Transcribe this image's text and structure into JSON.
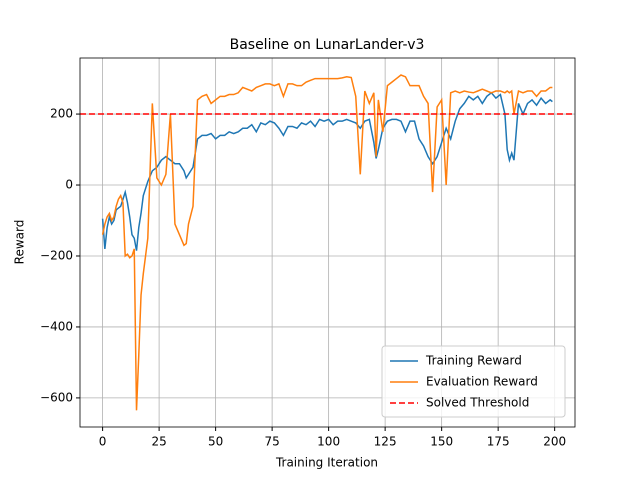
{
  "chart_data": {
    "type": "line",
    "title": "Baseline on LunarLander-v3",
    "x_label": "Training Iteration",
    "y_label": "Reward",
    "x": [
      0,
      1,
      2,
      3,
      4,
      5,
      6,
      7,
      8,
      9,
      10,
      11,
      12,
      13,
      14,
      15,
      16,
      17,
      18,
      19,
      20,
      22,
      24,
      26,
      28,
      30,
      32,
      34,
      36,
      37,
      38,
      40,
      42,
      44,
      46,
      48,
      50,
      52,
      54,
      56,
      58,
      60,
      62,
      64,
      66,
      68,
      70,
      72,
      74,
      76,
      78,
      80,
      82,
      84,
      86,
      88,
      90,
      92,
      94,
      96,
      98,
      100,
      102,
      104,
      106,
      108,
      110,
      112,
      114,
      116,
      118,
      120,
      121,
      122,
      124,
      126,
      128,
      130,
      132,
      134,
      136,
      138,
      140,
      142,
      144,
      146,
      148,
      150,
      152,
      154,
      156,
      158,
      160,
      162,
      164,
      166,
      168,
      170,
      172,
      174,
      176,
      178,
      179,
      180,
      181,
      182,
      184,
      186,
      188,
      190,
      192,
      194,
      196,
      198,
      199
    ],
    "series": [
      {
        "name": "Training Reward",
        "color": "#1f77b4",
        "values": [
          -95,
          -180,
          -120,
          -90,
          -110,
          -100,
          -70,
          -65,
          -60,
          -40,
          -20,
          -50,
          -90,
          -140,
          -150,
          -185,
          -120,
          -80,
          -30,
          -10,
          10,
          40,
          50,
          70,
          80,
          70,
          60,
          60,
          40,
          20,
          30,
          50,
          130,
          140,
          140,
          145,
          130,
          140,
          140,
          150,
          145,
          150,
          160,
          160,
          170,
          150,
          175,
          170,
          180,
          175,
          160,
          140,
          165,
          165,
          160,
          175,
          170,
          180,
          165,
          185,
          180,
          185,
          170,
          180,
          180,
          185,
          180,
          175,
          160,
          180,
          185,
          120,
          75,
          100,
          160,
          180,
          185,
          185,
          180,
          150,
          180,
          180,
          130,
          110,
          80,
          60,
          80,
          120,
          160,
          130,
          180,
          215,
          230,
          250,
          240,
          250,
          230,
          250,
          260,
          245,
          255,
          200,
          100,
          70,
          90,
          70,
          230,
          200,
          230,
          240,
          225,
          245,
          230,
          240,
          235
        ]
      },
      {
        "name": "Evaluation Reward",
        "color": "#ff7f0e",
        "values": [
          -140,
          -110,
          -90,
          -80,
          -100,
          -90,
          -60,
          -40,
          -30,
          -50,
          -200,
          -195,
          -205,
          -200,
          -180,
          -635,
          -480,
          -310,
          -250,
          -200,
          -150,
          230,
          20,
          0,
          30,
          200,
          -110,
          -140,
          -170,
          -165,
          -110,
          -60,
          240,
          250,
          255,
          230,
          240,
          250,
          250,
          255,
          255,
          260,
          275,
          270,
          265,
          275,
          280,
          285,
          285,
          280,
          285,
          250,
          285,
          285,
          280,
          280,
          290,
          295,
          300,
          300,
          300,
          300,
          300,
          300,
          302,
          305,
          303,
          250,
          30,
          265,
          230,
          260,
          80,
          240,
          150,
          280,
          290,
          300,
          310,
          305,
          280,
          280,
          280,
          250,
          230,
          -20,
          220,
          240,
          0,
          260,
          265,
          260,
          265,
          262,
          260,
          265,
          270,
          265,
          260,
          265,
          265,
          260,
          265,
          260,
          265,
          200,
          265,
          260,
          265,
          265,
          250,
          265,
          265,
          275,
          275
        ]
      }
    ],
    "hlines": [
      {
        "name": "Solved Threshold",
        "color": "#ff0000",
        "y": 200,
        "dashed": true
      }
    ],
    "xlim": [
      -10,
      209
    ],
    "ylim": [
      -682,
      358
    ],
    "xticks": [
      0,
      25,
      50,
      75,
      100,
      125,
      150,
      175,
      200
    ],
    "yticks": [
      {
        "value": -600,
        "label": "−600"
      },
      {
        "value": -400,
        "label": "−400"
      },
      {
        "value": -200,
        "label": "−200"
      },
      0,
      200
    ],
    "grid": true,
    "legend": "lower right"
  }
}
